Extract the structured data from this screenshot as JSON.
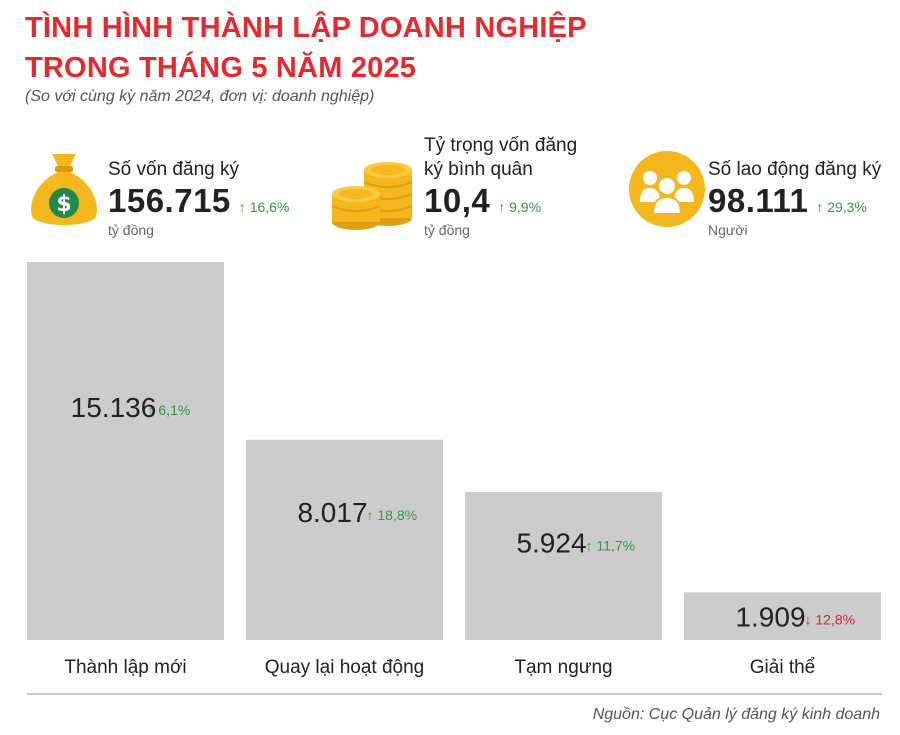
{
  "header": {
    "title_line1": "TÌNH HÌNH THÀNH LẬP DOANH NGHIỆP",
    "title_line2": "TRONG THÁNG 5 NĂM 2025",
    "subtitle": "(So với cùng kỳ năm 2024, đơn vị: doanh nghiệp)"
  },
  "stats": [
    {
      "label": "Số vốn đăng ký",
      "value": "156.715",
      "change": "16,6%",
      "direction": "up",
      "unit": "tỷ đồng",
      "icon": "money-bag-icon"
    },
    {
      "label_line1": "Tỷ trọng vốn đăng",
      "label_line2": "ký bình quân",
      "value": "10,4",
      "change": "9,9%",
      "direction": "up",
      "unit": "tỷ đồng",
      "icon": "coins-icon"
    },
    {
      "label": "Số lao động đăng ký",
      "value": "98.111",
      "change": "29,3%",
      "direction": "up",
      "unit": "Người",
      "icon": "people-icon"
    }
  ],
  "chart_data": {
    "type": "bar",
    "categories": [
      "Thành lập mới",
      "Quay lại hoạt động",
      "Tạm ngưng",
      "Giải thể"
    ],
    "values": [
      15136,
      8017,
      5924,
      1909
    ],
    "value_labels": [
      "15.136",
      "8.017",
      "5.924",
      "1.909"
    ],
    "changes": [
      "6,1%",
      "18,8%",
      "11,7%",
      "12,8%"
    ],
    "change_directions": [
      "up",
      "up",
      "up",
      "down"
    ],
    "bar_color": "#cccccc",
    "up_color": "#2e9c3c",
    "down_color": "#d62828"
  },
  "colors": {
    "title": "#e22a2f",
    "icon_yellow": "#f4b71e",
    "coin_dark": "#e09f12"
  },
  "source": "Nguồn: Cục Quản lý đăng ký kinh doanh"
}
